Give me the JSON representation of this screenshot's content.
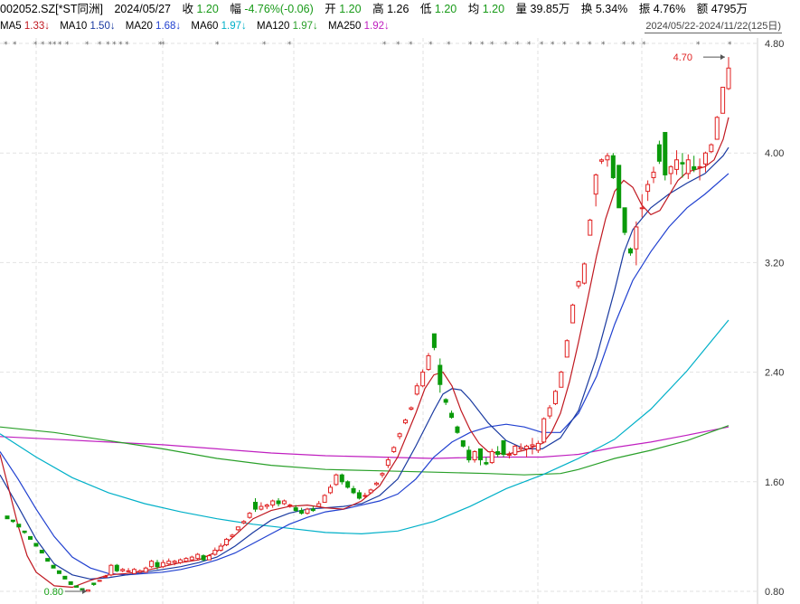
{
  "header": {
    "code": "002052.SZ[*ST同洲]",
    "date": "2024/05/27",
    "close_label": "收",
    "close": "1.20",
    "amp_label": "幅",
    "amp": "-4.76%(-0.06)",
    "open_label": "开",
    "open": "1.20",
    "high_label": "高",
    "high": "1.26",
    "low_label": "低",
    "low": "1.20",
    "avg_label": "均",
    "avg": "1.20",
    "vol_label": "量",
    "vol": "39.85万",
    "turn_label": "换",
    "turn": "5.34%",
    "swing_label": "振",
    "swing": "4.76%",
    "amt_label": "额",
    "amt": "4795万"
  },
  "ma_row": {
    "ma5": "MA5",
    "ma5_val": "1.33↓",
    "ma10": "MA10",
    "ma10_val": "1.50↓",
    "ma20": "MA20",
    "ma20_val": "1.68↓",
    "ma60": "MA60",
    "ma60_val": "1.97↓",
    "ma120": "MA120",
    "ma120_val": "1.97↓",
    "ma250": "MA250",
    "ma250_val": "1.92↓",
    "range": "2024/05/22-2024/11/22(125日)"
  },
  "chart_data": {
    "type": "candlestick",
    "y_ticks": [
      "4.80",
      "4.00",
      "3.20",
      "2.40",
      "1.60",
      "0.80"
    ],
    "y_tick_values": [
      4.8,
      4.0,
      3.2,
      2.4,
      1.6,
      0.8
    ],
    "ylim": [
      0.72,
      4.85
    ],
    "high_marker": "4.70",
    "low_marker": "0.80",
    "colors": {
      "up": "#e02020",
      "down": "#0a9a0a",
      "ma5": "#c01820",
      "ma10": "#1a3aa0",
      "ma20": "#2040d0",
      "ma60": "#00b0c8",
      "ma120": "#2aa02a",
      "ma250": "#c020c0"
    },
    "candles": [
      [
        1.35,
        1.35,
        1.33,
        1.33
      ],
      [
        1.32,
        1.32,
        1.3,
        1.31
      ],
      [
        1.29,
        1.29,
        1.27,
        1.27
      ],
      [
        1.24,
        1.24,
        1.22,
        1.23
      ],
      [
        1.2,
        1.2,
        1.18,
        1.18
      ],
      [
        1.15,
        1.15,
        1.13,
        1.13
      ],
      [
        1.1,
        1.1,
        1.08,
        1.08
      ],
      [
        1.04,
        1.04,
        1.02,
        1.02
      ],
      [
        0.99,
        0.99,
        0.97,
        0.97
      ],
      [
        0.95,
        0.95,
        0.93,
        0.93
      ],
      [
        0.91,
        0.91,
        0.89,
        0.89
      ],
      [
        0.87,
        0.87,
        0.85,
        0.85
      ],
      [
        0.84,
        0.84,
        0.83,
        0.83
      ],
      [
        0.82,
        0.82,
        0.81,
        0.81
      ],
      [
        0.8,
        0.81,
        0.8,
        0.81
      ],
      [
        0.86,
        0.86,
        0.84,
        0.85
      ],
      [
        0.88,
        0.88,
        0.87,
        0.88
      ],
      [
        0.91,
        0.92,
        0.9,
        0.91
      ],
      [
        0.92,
        1.0,
        0.91,
        0.99
      ],
      [
        0.99,
        1.0,
        0.94,
        0.95
      ],
      [
        0.95,
        0.97,
        0.94,
        0.96
      ],
      [
        0.95,
        0.97,
        0.94,
        0.95
      ],
      [
        0.93,
        0.97,
        0.93,
        0.96
      ],
      [
        0.94,
        0.96,
        0.93,
        0.95
      ],
      [
        0.94,
        0.98,
        0.94,
        0.97
      ],
      [
        0.98,
        1.03,
        0.97,
        1.02
      ],
      [
        1.01,
        1.03,
        0.96,
        0.98
      ],
      [
        0.98,
        1.03,
        0.97,
        1.01
      ],
      [
        1.0,
        1.04,
        0.99,
        1.02
      ],
      [
        1.01,
        1.03,
        0.99,
        1.02
      ],
      [
        1.01,
        1.04,
        1.0,
        1.03
      ],
      [
        1.02,
        1.05,
        1.01,
        1.04
      ],
      [
        1.03,
        1.06,
        1.02,
        1.05
      ],
      [
        1.04,
        1.08,
        1.03,
        1.07
      ],
      [
        1.06,
        1.07,
        1.02,
        1.03
      ],
      [
        1.03,
        1.07,
        1.03,
        1.06
      ],
      [
        1.07,
        1.12,
        1.06,
        1.1
      ],
      [
        1.1,
        1.15,
        1.09,
        1.13
      ],
      [
        1.14,
        1.19,
        1.13,
        1.18
      ],
      [
        1.2,
        1.22,
        1.19,
        1.21
      ],
      [
        1.25,
        1.27,
        1.24,
        1.27
      ],
      [
        1.3,
        1.32,
        1.29,
        1.31
      ],
      [
        1.34,
        1.38,
        1.33,
        1.37
      ],
      [
        1.45,
        1.48,
        1.38,
        1.4
      ],
      [
        1.4,
        1.45,
        1.39,
        1.42
      ],
      [
        1.42,
        1.44,
        1.4,
        1.43
      ],
      [
        1.43,
        1.47,
        1.41,
        1.46
      ],
      [
        1.46,
        1.48,
        1.42,
        1.44
      ],
      [
        1.44,
        1.47,
        1.43,
        1.46
      ],
      [
        1.43,
        1.44,
        1.41,
        1.43
      ],
      [
        1.41,
        1.43,
        1.38,
        1.39
      ],
      [
        1.39,
        1.41,
        1.36,
        1.37
      ],
      [
        1.37,
        1.41,
        1.36,
        1.4
      ],
      [
        1.4,
        1.42,
        1.38,
        1.39
      ],
      [
        1.42,
        1.46,
        1.42,
        1.44
      ],
      [
        1.45,
        1.51,
        1.45,
        1.5
      ],
      [
        1.52,
        1.58,
        1.51,
        1.56
      ],
      [
        1.58,
        1.66,
        1.57,
        1.65
      ],
      [
        1.65,
        1.66,
        1.58,
        1.6
      ],
      [
        1.6,
        1.61,
        1.55,
        1.56
      ],
      [
        1.55,
        1.57,
        1.51,
        1.52
      ],
      [
        1.52,
        1.54,
        1.47,
        1.48
      ],
      [
        1.5,
        1.52,
        1.48,
        1.5
      ],
      [
        1.52,
        1.55,
        1.51,
        1.54
      ],
      [
        1.58,
        1.6,
        1.57,
        1.59
      ],
      [
        1.65,
        1.67,
        1.63,
        1.66
      ],
      [
        1.72,
        1.78,
        1.7,
        1.76
      ],
      [
        1.82,
        1.86,
        1.81,
        1.85
      ],
      [
        1.93,
        1.96,
        1.91,
        1.95
      ],
      [
        2.03,
        2.06,
        2.02,
        2.05
      ],
      [
        2.13,
        2.15,
        2.12,
        2.14
      ],
      [
        2.24,
        2.32,
        2.23,
        2.3
      ],
      [
        2.3,
        2.42,
        2.29,
        2.4
      ],
      [
        2.42,
        2.54,
        2.41,
        2.52
      ],
      [
        2.68,
        2.68,
        2.56,
        2.58
      ],
      [
        2.45,
        2.5,
        2.25,
        2.31
      ],
      [
        2.2,
        2.21,
        2.16,
        2.18
      ],
      [
        2.1,
        2.12,
        2.06,
        2.07
      ],
      [
        2.0,
        2.01,
        1.95,
        1.96
      ],
      [
        1.9,
        1.9,
        1.85,
        1.86
      ],
      [
        1.83,
        1.86,
        1.74,
        1.76
      ],
      [
        1.76,
        1.83,
        1.74,
        1.82
      ],
      [
        1.84,
        1.84,
        1.72,
        1.76
      ],
      [
        1.74,
        1.78,
        1.72,
        1.73
      ],
      [
        1.74,
        1.84,
        1.73,
        1.82
      ],
      [
        1.82,
        1.86,
        1.78,
        1.8
      ],
      [
        1.9,
        1.9,
        1.78,
        1.8
      ],
      [
        1.8,
        1.82,
        1.77,
        1.8
      ],
      [
        1.8,
        1.87,
        1.79,
        1.86
      ],
      [
        1.84,
        1.88,
        1.82,
        1.85
      ],
      [
        1.84,
        1.87,
        1.78,
        1.86
      ],
      [
        1.86,
        1.92,
        1.8,
        1.87
      ],
      [
        1.83,
        1.9,
        1.81,
        1.88
      ],
      [
        1.89,
        2.07,
        1.88,
        2.06
      ],
      [
        2.08,
        2.16,
        2.06,
        2.14
      ],
      [
        2.17,
        2.27,
        2.16,
        2.26
      ],
      [
        2.29,
        2.41,
        2.29,
        2.4
      ],
      [
        2.51,
        2.64,
        2.51,
        2.63
      ],
      [
        2.76,
        2.9,
        2.76,
        2.89
      ],
      [
        3.03,
        3.07,
        3.01,
        3.06
      ],
      [
        3.05,
        3.2,
        3.04,
        3.19
      ],
      [
        3.4,
        3.52,
        3.4,
        3.51
      ],
      [
        3.7,
        3.85,
        3.61,
        3.84
      ],
      [
        3.94,
        3.96,
        3.92,
        3.95
      ],
      [
        3.95,
        4.0,
        3.9,
        3.98
      ],
      [
        3.98,
        4.0,
        3.81,
        3.82
      ],
      [
        3.91,
        3.91,
        3.6,
        3.6
      ],
      [
        3.6,
        3.6,
        3.4,
        3.42
      ],
      [
        3.3,
        3.31,
        3.25,
        3.27
      ],
      [
        3.3,
        3.5,
        3.18,
        3.46
      ],
      [
        3.6,
        3.7,
        3.53,
        3.6
      ],
      [
        3.72,
        3.8,
        3.65,
        3.77
      ],
      [
        3.82,
        3.9,
        3.78,
        3.86
      ],
      [
        4.06,
        4.09,
        3.92,
        3.94
      ],
      [
        4.15,
        4.15,
        3.8,
        3.84
      ],
      [
        3.85,
        3.91,
        3.77,
        3.9
      ],
      [
        3.88,
        4.02,
        3.84,
        3.95
      ],
      [
        3.93,
        4.0,
        3.82,
        3.92
      ],
      [
        3.85,
        3.99,
        3.81,
        3.95
      ],
      [
        3.9,
        3.98,
        3.86,
        3.88
      ],
      [
        3.9,
        3.96,
        3.8,
        3.9
      ],
      [
        3.92,
        4.01,
        3.86,
        4.0
      ],
      [
        4.01,
        4.07,
        4.0,
        4.06
      ],
      [
        4.1,
        4.27,
        4.1,
        4.26
      ],
      [
        4.29,
        4.48,
        4.29,
        4.48
      ],
      [
        4.47,
        4.7,
        4.46,
        4.62
      ]
    ],
    "ma5": [
      [
        0,
        1.8
      ],
      [
        10,
        1.54
      ],
      [
        20,
        1.28
      ],
      [
        30,
        1.06
      ],
      [
        40,
        0.94
      ],
      [
        60,
        0.84
      ],
      [
        80,
        0.83
      ],
      [
        100,
        0.88
      ],
      [
        120,
        0.92
      ],
      [
        140,
        0.93
      ],
      [
        160,
        0.95
      ],
      [
        180,
        0.98
      ],
      [
        200,
        1.01
      ],
      [
        220,
        1.03
      ],
      [
        240,
        1.09
      ],
      [
        260,
        1.21
      ],
      [
        280,
        1.33
      ],
      [
        300,
        1.39
      ],
      [
        320,
        1.42
      ],
      [
        340,
        1.43
      ],
      [
        360,
        1.41
      ],
      [
        380,
        1.4
      ],
      [
        400,
        1.46
      ],
      [
        420,
        1.57
      ],
      [
        440,
        1.78
      ],
      [
        460,
        2.1
      ],
      [
        470,
        2.28
      ],
      [
        480,
        2.38
      ],
      [
        490,
        2.4
      ],
      [
        500,
        2.3
      ],
      [
        510,
        2.12
      ],
      [
        520,
        1.98
      ],
      [
        530,
        1.88
      ],
      [
        540,
        1.82
      ],
      [
        560,
        1.8
      ],
      [
        580,
        1.83
      ],
      [
        600,
        1.88
      ],
      [
        610,
        1.96
      ],
      [
        620,
        2.1
      ],
      [
        630,
        2.33
      ],
      [
        640,
        2.62
      ],
      [
        650,
        2.93
      ],
      [
        660,
        3.25
      ],
      [
        670,
        3.52
      ],
      [
        680,
        3.72
      ],
      [
        690,
        3.8
      ],
      [
        700,
        3.75
      ],
      [
        710,
        3.62
      ],
      [
        720,
        3.55
      ],
      [
        730,
        3.58
      ],
      [
        740,
        3.69
      ],
      [
        750,
        3.8
      ],
      [
        760,
        3.86
      ],
      [
        770,
        3.88
      ],
      [
        780,
        3.9
      ],
      [
        790,
        3.95
      ],
      [
        800,
        4.1
      ],
      [
        806,
        4.26
      ]
    ],
    "ma10": [
      [
        0,
        1.65
      ],
      [
        20,
        1.42
      ],
      [
        40,
        1.18
      ],
      [
        60,
        1.0
      ],
      [
        80,
        0.92
      ],
      [
        100,
        0.89
      ],
      [
        120,
        0.9
      ],
      [
        140,
        0.92
      ],
      [
        160,
        0.94
      ],
      [
        180,
        0.96
      ],
      [
        200,
        0.98
      ],
      [
        220,
        1.01
      ],
      [
        240,
        1.05
      ],
      [
        260,
        1.13
      ],
      [
        280,
        1.23
      ],
      [
        300,
        1.32
      ],
      [
        320,
        1.37
      ],
      [
        340,
        1.4
      ],
      [
        360,
        1.41
      ],
      [
        380,
        1.42
      ],
      [
        400,
        1.44
      ],
      [
        420,
        1.5
      ],
      [
        440,
        1.62
      ],
      [
        460,
        1.86
      ],
      [
        480,
        2.12
      ],
      [
        490,
        2.24
      ],
      [
        500,
        2.28
      ],
      [
        510,
        2.27
      ],
      [
        520,
        2.2
      ],
      [
        540,
        2.03
      ],
      [
        560,
        1.9
      ],
      [
        580,
        1.84
      ],
      [
        600,
        1.84
      ],
      [
        620,
        1.92
      ],
      [
        640,
        2.12
      ],
      [
        660,
        2.51
      ],
      [
        680,
        3.0
      ],
      [
        690,
        3.27
      ],
      [
        700,
        3.44
      ],
      [
        710,
        3.52
      ],
      [
        720,
        3.6
      ],
      [
        740,
        3.7
      ],
      [
        760,
        3.78
      ],
      [
        780,
        3.85
      ],
      [
        800,
        3.98
      ],
      [
        806,
        4.04
      ]
    ],
    "ma20": [
      [
        0,
        1.82
      ],
      [
        20,
        1.62
      ],
      [
        40,
        1.4
      ],
      [
        60,
        1.2
      ],
      [
        80,
        1.05
      ],
      [
        100,
        0.97
      ],
      [
        120,
        0.93
      ],
      [
        140,
        0.92
      ],
      [
        160,
        0.93
      ],
      [
        180,
        0.94
      ],
      [
        200,
        0.96
      ],
      [
        220,
        0.99
      ],
      [
        240,
        1.03
      ],
      [
        260,
        1.08
      ],
      [
        280,
        1.15
      ],
      [
        300,
        1.22
      ],
      [
        320,
        1.29
      ],
      [
        340,
        1.34
      ],
      [
        360,
        1.38
      ],
      [
        380,
        1.4
      ],
      [
        400,
        1.43
      ],
      [
        420,
        1.46
      ],
      [
        440,
        1.51
      ],
      [
        460,
        1.62
      ],
      [
        480,
        1.78
      ],
      [
        500,
        1.89
      ],
      [
        520,
        1.96
      ],
      [
        540,
        2.0
      ],
      [
        560,
        2.02
      ],
      [
        580,
        2.0
      ],
      [
        600,
        1.96
      ],
      [
        620,
        1.96
      ],
      [
        640,
        2.1
      ],
      [
        660,
        2.37
      ],
      [
        680,
        2.75
      ],
      [
        700,
        3.07
      ],
      [
        720,
        3.28
      ],
      [
        740,
        3.46
      ],
      [
        760,
        3.6
      ],
      [
        780,
        3.7
      ],
      [
        806,
        3.85
      ]
    ],
    "ma60": [
      [
        0,
        1.95
      ],
      [
        40,
        1.78
      ],
      [
        80,
        1.63
      ],
      [
        120,
        1.52
      ],
      [
        160,
        1.44
      ],
      [
        200,
        1.38
      ],
      [
        240,
        1.33
      ],
      [
        280,
        1.29
      ],
      [
        320,
        1.26
      ],
      [
        360,
        1.23
      ],
      [
        400,
        1.22
      ],
      [
        440,
        1.24
      ],
      [
        480,
        1.31
      ],
      [
        520,
        1.42
      ],
      [
        560,
        1.55
      ],
      [
        600,
        1.65
      ],
      [
        640,
        1.77
      ],
      [
        680,
        1.91
      ],
      [
        720,
        2.13
      ],
      [
        760,
        2.41
      ],
      [
        806,
        2.78
      ]
    ],
    "ma120": [
      [
        0,
        2.0
      ],
      [
        60,
        1.96
      ],
      [
        120,
        1.9
      ],
      [
        180,
        1.84
      ],
      [
        240,
        1.77
      ],
      [
        300,
        1.72
      ],
      [
        360,
        1.69
      ],
      [
        420,
        1.68
      ],
      [
        480,
        1.67
      ],
      [
        540,
        1.66
      ],
      [
        580,
        1.65
      ],
      [
        620,
        1.66
      ],
      [
        640,
        1.69
      ],
      [
        680,
        1.77
      ],
      [
        720,
        1.83
      ],
      [
        760,
        1.9
      ],
      [
        806,
        2.01
      ]
    ],
    "ma250": [
      [
        0,
        1.93
      ],
      [
        60,
        1.91
      ],
      [
        120,
        1.89
      ],
      [
        180,
        1.87
      ],
      [
        240,
        1.84
      ],
      [
        300,
        1.81
      ],
      [
        360,
        1.79
      ],
      [
        420,
        1.78
      ],
      [
        480,
        1.77
      ],
      [
        540,
        1.78
      ],
      [
        600,
        1.78
      ],
      [
        640,
        1.8
      ],
      [
        680,
        1.85
      ],
      [
        720,
        1.89
      ],
      [
        760,
        1.94
      ],
      [
        806,
        2.0
      ]
    ]
  }
}
